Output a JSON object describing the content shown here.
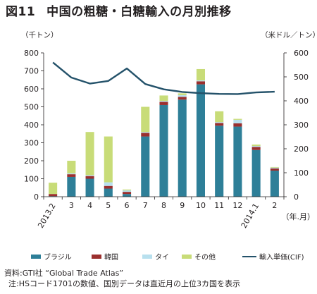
{
  "title": {
    "figure_number": "図11",
    "text": "中国の粗糖・白糖輸入の月別推移"
  },
  "units": {
    "left": "（千トン）",
    "right": "（米ドル／トン）",
    "x": "（年.月）"
  },
  "colors": {
    "brazil": "#2e7f98",
    "korea": "#9b2f2e",
    "thailand": "#b8e0ee",
    "other": "#c8dc78",
    "price": "#24526a"
  },
  "legend": {
    "brazil": "ブラジル",
    "korea": "韓国",
    "thailand": "タイ",
    "other": "その他",
    "price": "輸入単価(CIF)"
  },
  "source": {
    "line1": "資料:GTI社 “Global Trade Atlas”",
    "line2": "注:HSコード1701の数値、国別データは直近月の上位3カ国を表示"
  },
  "chart_data": {
    "type": "bar",
    "stacked": true,
    "categories": [
      "2013.2",
      "3",
      "4",
      "5",
      "6",
      "7",
      "8",
      "9",
      "10",
      "11",
      "12",
      "2014.1",
      "2"
    ],
    "x_label": "（年.月）",
    "series": [
      {
        "name": "ブラジル",
        "values": [
          3,
          110,
          100,
          45,
          15,
          335,
          510,
          540,
          625,
          395,
          390,
          260,
          145
        ]
      },
      {
        "name": "韓国",
        "values": [
          12,
          15,
          15,
          15,
          12,
          20,
          18,
          15,
          17,
          15,
          18,
          17,
          12
        ]
      },
      {
        "name": "タイ",
        "values": [
          0,
          5,
          5,
          20,
          8,
          5,
          5,
          10,
          5,
          5,
          20,
          5,
          5
        ]
      },
      {
        "name": "その他",
        "values": [
          63,
          70,
          240,
          255,
          5,
          140,
          30,
          10,
          63,
          60,
          5,
          8,
          3
        ]
      }
    ],
    "line": {
      "name": "輸入単価(CIF)",
      "axis": "right",
      "values": [
        560,
        497,
        472,
        483,
        535,
        470,
        448,
        437,
        432,
        429,
        428,
        435,
        438
      ]
    },
    "y_left": {
      "label": "（千トン）",
      "min": 0,
      "max": 800,
      "ticks": [
        0,
        100,
        200,
        300,
        400,
        500,
        600,
        700,
        800
      ]
    },
    "y_right": {
      "label": "（米ドル／トン）",
      "min": 0,
      "max": 600,
      "ticks": [
        0,
        100,
        200,
        300,
        400,
        500,
        600
      ]
    },
    "grid": false,
    "legend_position": "bottom"
  }
}
